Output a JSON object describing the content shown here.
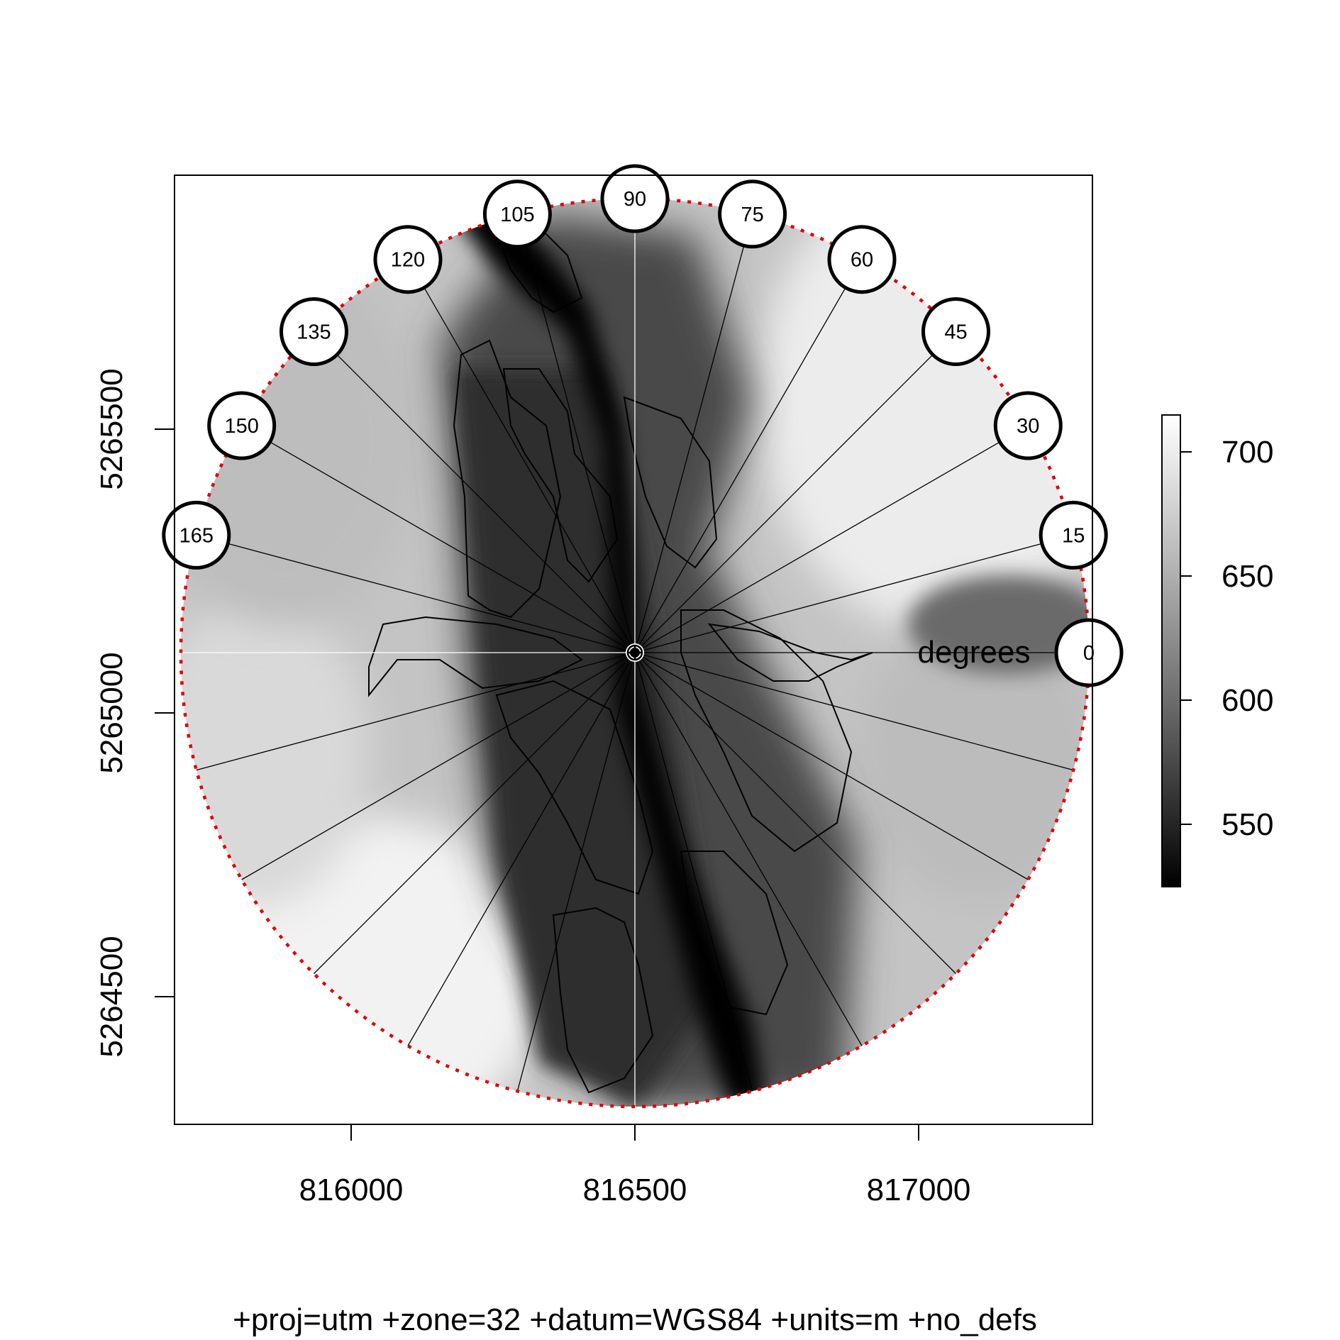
{
  "map": {
    "type": "raster-map",
    "crs_label": "+proj=utm +zone=32 +datum=WGS84 +units=m +no_defs",
    "x_ticks": [
      "816000",
      "816500",
      "817000"
    ],
    "y_ticks": [
      "5264500",
      "5265000",
      "5265500"
    ],
    "center_easting": 816500,
    "center_northing": 5265110,
    "radius_m": 800,
    "angle_unit_label": "degrees",
    "angle_step_deg": 15,
    "angle_badges": [
      "0",
      "15",
      "30",
      "45",
      "60",
      "75",
      "90",
      "105",
      "120",
      "135",
      "150",
      "165"
    ],
    "ray_color": "#000000",
    "circle_color": "#e00000",
    "colormap": "grayscale",
    "colorbar": {
      "ticks": [
        "550",
        "600",
        "650",
        "700"
      ],
      "min": 524,
      "max": 714
    }
  }
}
